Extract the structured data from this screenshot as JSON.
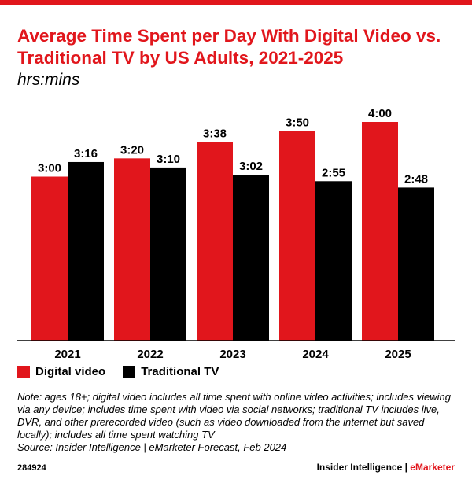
{
  "header": {
    "title": "Average Time Spent per Day With Digital Video vs. Traditional TV by US Adults, 2021-2025",
    "subtitle": "hrs:mins"
  },
  "colors": {
    "accent": "#e1161c",
    "digital_video": "#e1161c",
    "traditional_tv": "#000000"
  },
  "chart_data": {
    "type": "bar",
    "title": "Average Time Spent per Day With Digital Video vs. Traditional TV by US Adults, 2021-2025",
    "subtitle": "hrs:mins",
    "categories": [
      "2021",
      "2022",
      "2023",
      "2024",
      "2025"
    ],
    "series": [
      {
        "name": "Digital video",
        "values": [
          180,
          200,
          218,
          230,
          240
        ],
        "labels": [
          "3:00",
          "3:20",
          "3:38",
          "3:50",
          "4:00"
        ]
      },
      {
        "name": "Traditional TV",
        "values": [
          196,
          190,
          182,
          175,
          168
        ],
        "labels": [
          "3:16",
          "3:10",
          "3:02",
          "2:55",
          "2:48"
        ]
      }
    ],
    "unit": "minutes per day",
    "ylim": [
      0,
      240
    ],
    "grid": false,
    "legend": "bottom-left"
  },
  "note": "Note: ages 18+; digital video includes all time spent with online video activities; includes viewing via any device; includes time spent with video via social networks; traditional TV includes live, DVR, and other prerecorded video (such as video downloaded from the internet but saved locally); includes all time spent watching TV",
  "source": "Source: Insider Intelligence | eMarketer Forecast, Feb 2024",
  "footer": {
    "chart_id": "284924",
    "brand_left": "Insider Intelligence",
    "brand_sep": " | ",
    "brand_right": "eMarketer"
  }
}
